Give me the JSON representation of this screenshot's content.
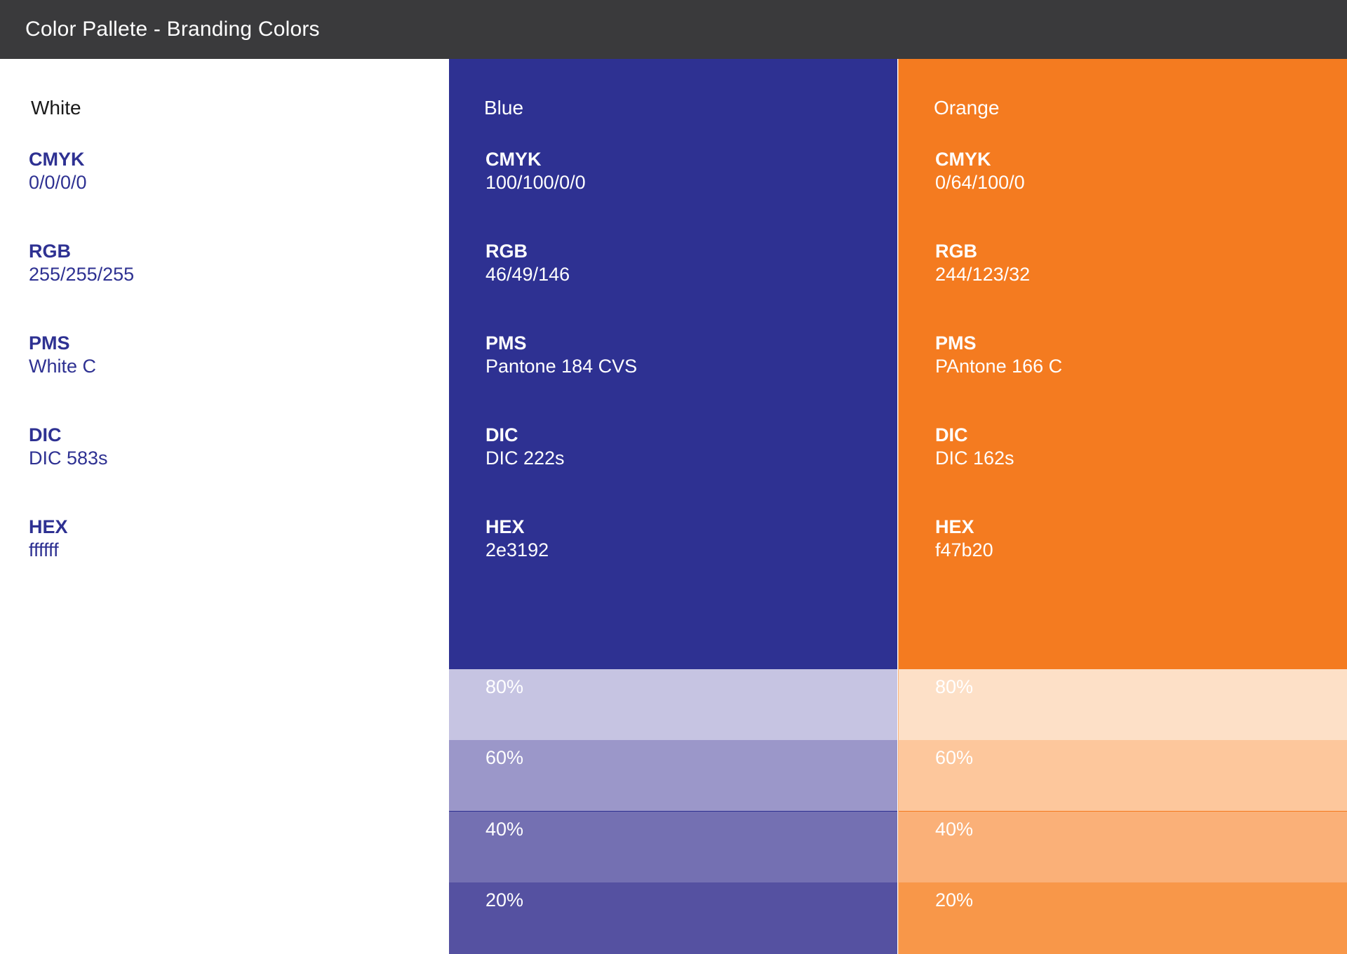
{
  "header": {
    "title": "Color Pallete - Branding Colors"
  },
  "colors": [
    {
      "name": "White",
      "hex_color": "#ffffff",
      "specs": [
        {
          "label": "CMYK",
          "value": "0/0/0/0"
        },
        {
          "label": "RGB",
          "value": "255/255/255"
        },
        {
          "label": "PMS",
          "value": "White C"
        },
        {
          "label": "DIC",
          "value": "DIC 583s"
        },
        {
          "label": "HEX",
          "value": "ffffff"
        }
      ],
      "tints": []
    },
    {
      "name": "Blue",
      "hex_color": "#2e3192",
      "specs": [
        {
          "label": "CMYK",
          "value": "100/100/0/0"
        },
        {
          "label": "RGB",
          "value": "46/49/146"
        },
        {
          "label": "PMS",
          "value": "Pantone 184 CVS"
        },
        {
          "label": "DIC",
          "value": "DIC 222s"
        },
        {
          "label": "HEX",
          "value": "2e3192"
        }
      ],
      "tints": [
        {
          "label": "80%",
          "color": "#c6c4e2"
        },
        {
          "label": "60%",
          "color": "#9b97c9"
        },
        {
          "label": "40%",
          "color": "#7470b2"
        },
        {
          "label": "20%",
          "color": "#5551a1"
        }
      ]
    },
    {
      "name": "Orange",
      "hex_color": "#f47b20",
      "specs": [
        {
          "label": "CMYK",
          "value": "0/64/100/0"
        },
        {
          "label": "RGB",
          "value": "244/123/32"
        },
        {
          "label": "PMS",
          "value": "PAntone 166 C"
        },
        {
          "label": "DIC",
          "value": "DIC 162s"
        },
        {
          "label": "HEX",
          "value": "f47b20"
        }
      ],
      "tints": [
        {
          "label": "80%",
          "color": "#fde0c7"
        },
        {
          "label": "60%",
          "color": "#fdc79c"
        },
        {
          "label": "40%",
          "color": "#fab078"
        },
        {
          "label": "20%",
          "color": "#f89749"
        }
      ]
    }
  ]
}
